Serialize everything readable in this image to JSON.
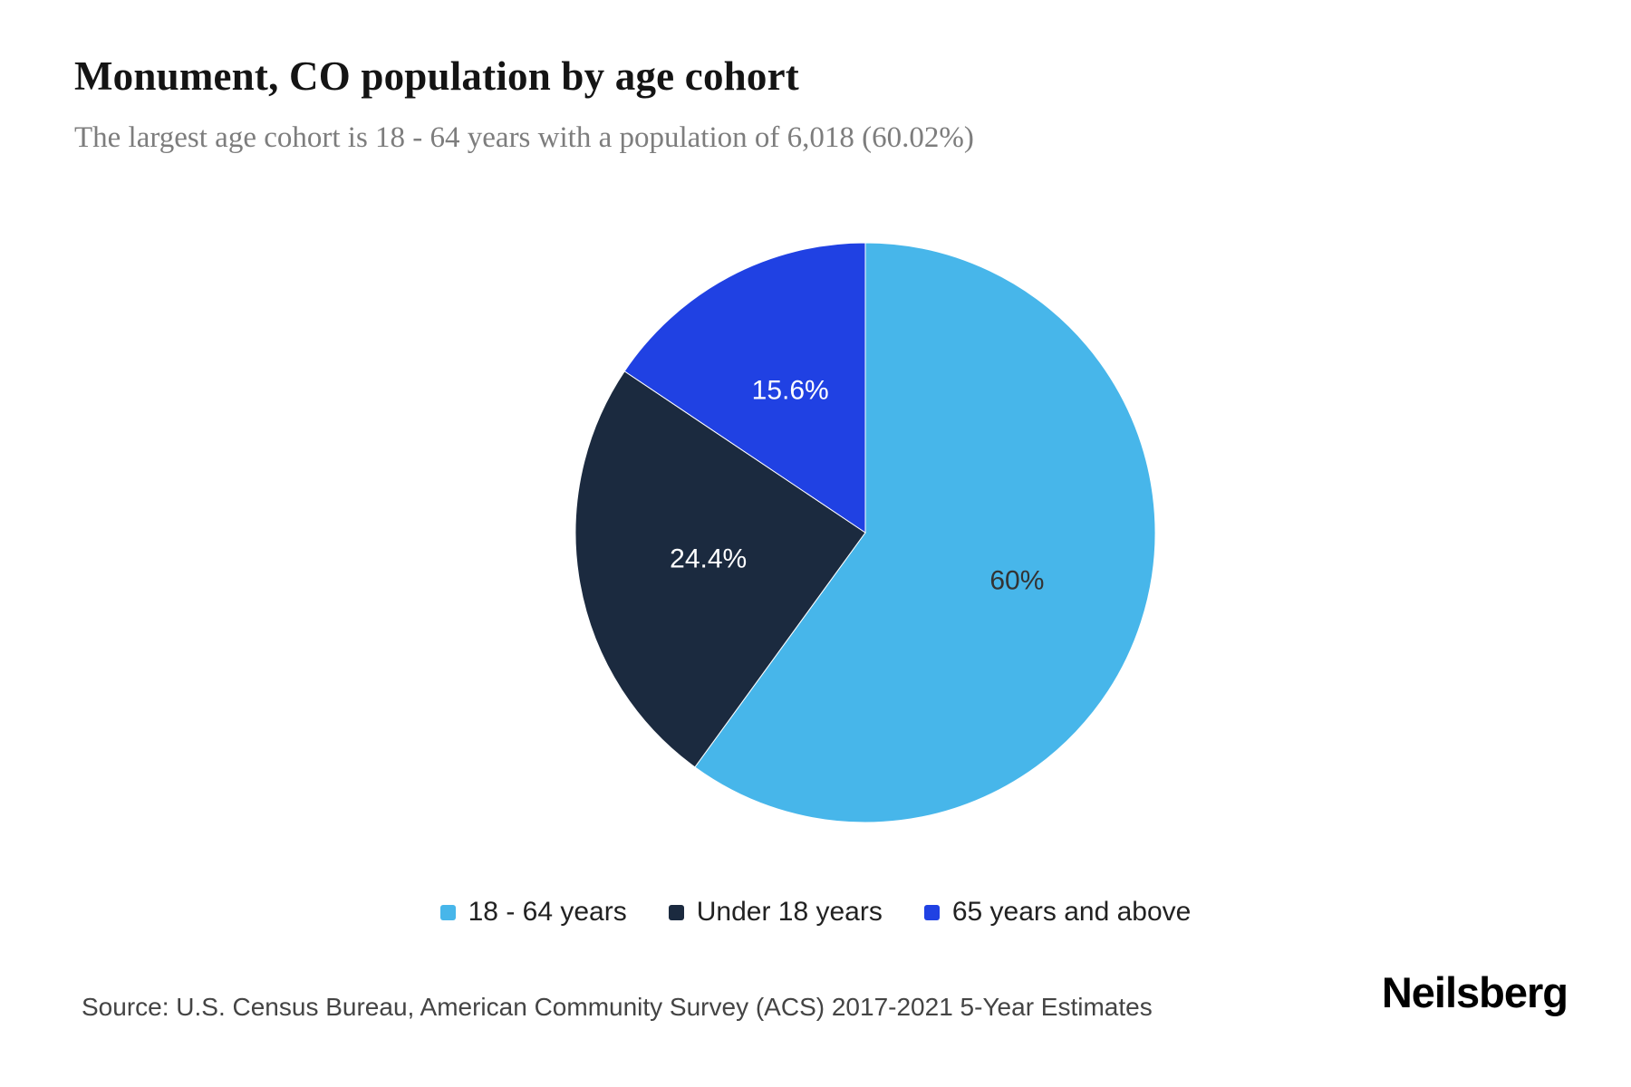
{
  "header": {
    "title": "Monument, CO population by age cohort",
    "subtitle": "The largest age cohort is 18 - 64 years with a population of 6,018 (60.02%)"
  },
  "chart_data": {
    "type": "pie",
    "title": "Monument, CO population by age cohort",
    "unit": "percent",
    "start_angle_deg": 0,
    "direction": "clockwise",
    "legend_position": "bottom",
    "label_radius_ratio": 0.55,
    "slices": [
      {
        "label": "18 - 64 years",
        "value": 60,
        "display": "60%",
        "color": "#47b6ea",
        "label_color": "#333333"
      },
      {
        "label": "Under 18 years",
        "value": 24.4,
        "display": "24.4%",
        "color": "#1b2a3f",
        "label_color": "#ffffff"
      },
      {
        "label": "65 years and above",
        "value": 15.6,
        "display": "15.6%",
        "color": "#2041e3",
        "label_color": "#ffffff"
      }
    ]
  },
  "footer": {
    "source": "Source: U.S. Census Bureau, American Community Survey (ACS) 2017-2021 5-Year Estimates",
    "brand": "Neilsberg"
  }
}
